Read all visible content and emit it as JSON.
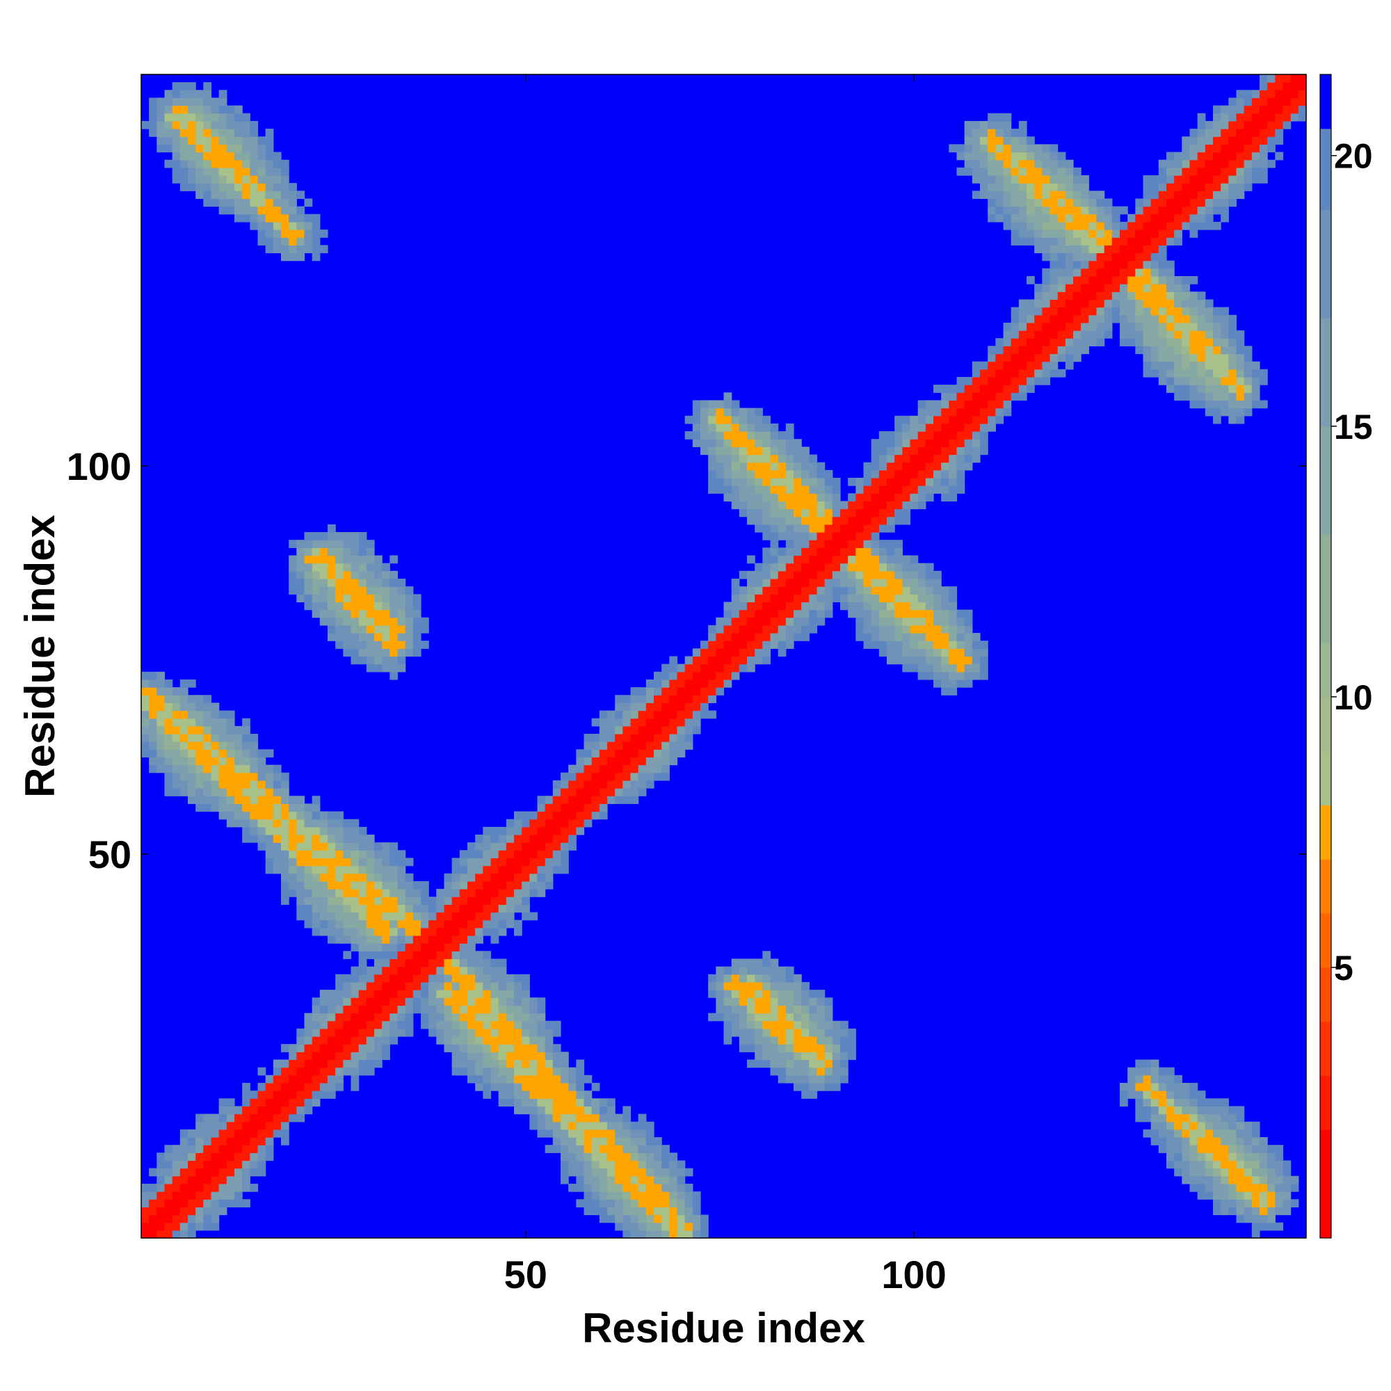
{
  "chart_data": {
    "type": "heatmap",
    "title": "",
    "xlabel": "Residue index",
    "ylabel": "Residue index",
    "n_residues": 150,
    "xlim": [
      0.5,
      150.5
    ],
    "ylim": [
      0.5,
      150.5
    ],
    "x_ticks": [
      50,
      100
    ],
    "y_ticks": [
      50,
      100
    ],
    "grid": false,
    "colorbar": {
      "position": "right",
      "range": [
        0,
        21.5
      ],
      "ticks": [
        5,
        10,
        15,
        20
      ],
      "levels": [
        {
          "from": 0,
          "to": 2,
          "color": "#ff0000"
        },
        {
          "from": 2,
          "to": 3,
          "color": "#ff1a00"
        },
        {
          "from": 3,
          "to": 4,
          "color": "#ff3300"
        },
        {
          "from": 4,
          "to": 5,
          "color": "#ff4d00"
        },
        {
          "from": 5,
          "to": 6,
          "color": "#ff6600"
        },
        {
          "from": 6,
          "to": 7,
          "color": "#ff8000"
        },
        {
          "from": 7,
          "to": 8,
          "color": "#ffa500"
        },
        {
          "from": 8,
          "to": 9,
          "color": "#a8c08a"
        },
        {
          "from": 9,
          "to": 10,
          "color": "#a2bc8c"
        },
        {
          "from": 10,
          "to": 11,
          "color": "#9cb890"
        },
        {
          "from": 11,
          "to": 13,
          "color": "#92b098"
        },
        {
          "from": 13,
          "to": 15,
          "color": "#86a8a4"
        },
        {
          "from": 15,
          "to": 17,
          "color": "#7c9eb0"
        },
        {
          "from": 17,
          "to": 19,
          "color": "#6e92b8"
        },
        {
          "from": 19,
          "to": 20.5,
          "color": "#5e86c0"
        },
        {
          "from": 20.5,
          "to": 21.5,
          "color": "#0000ff"
        }
      ]
    },
    "colors": {
      "near": "#ff0000",
      "contact": "#ffa500",
      "mid": "#9cb890",
      "far": "#6e92b8",
      "background": "#0000ff"
    },
    "structural_features": {
      "diagonal_contact_band": {
        "from": [
          1,
          1
        ],
        "to": [
          150,
          150
        ],
        "half_width_residues": 3
      },
      "antiparallel_contact_lines": [
        {
          "from": [
            5,
            145
          ],
          "to": [
            20,
            130
          ]
        },
        {
          "from": [
            1,
            70
          ],
          "to": [
            32,
            40
          ]
        },
        {
          "from": [
            40,
            36
          ],
          "to": [
            70,
            2
          ]
        },
        {
          "from": [
            24,
            88
          ],
          "to": [
            33,
            79
          ]
        },
        {
          "from": [
            75,
            106
          ],
          "to": [
            89,
            91
          ]
        },
        {
          "from": [
            93,
            89
          ],
          "to": [
            106,
            75
          ]
        },
        {
          "from": [
            77,
            33
          ],
          "to": [
            88,
            23
          ]
        },
        {
          "from": [
            110,
            142
          ],
          "to": [
            124,
            128
          ]
        },
        {
          "from": [
            128,
            126
          ],
          "to": [
            142,
            110
          ]
        },
        {
          "from": [
            130,
            20
          ],
          "to": [
            145,
            6
          ]
        }
      ]
    }
  }
}
